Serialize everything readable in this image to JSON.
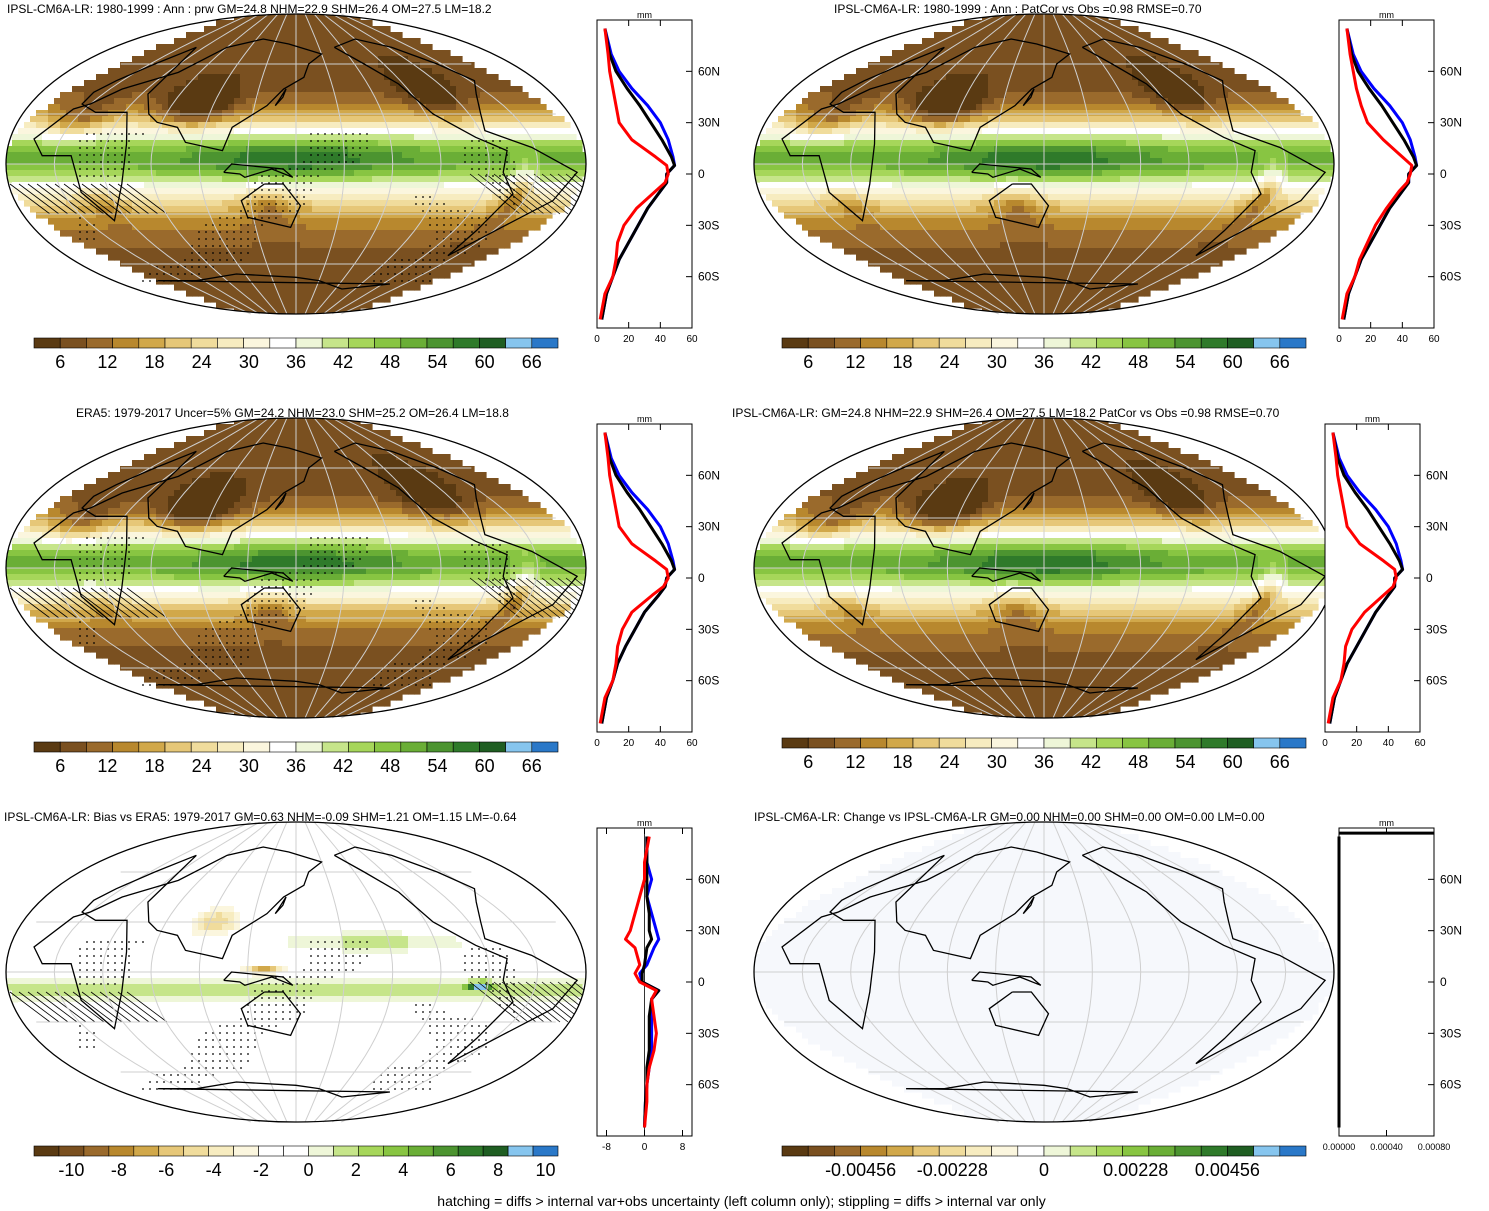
{
  "colors": {
    "precip_scale": [
      "#5a3a12",
      "#7a5020",
      "#9a6a2c",
      "#b8882e",
      "#d1a84a",
      "#e6c778",
      "#f0dc9c",
      "#f7ecc0",
      "#fbf6de",
      "#ffffff",
      "#eef6d8",
      "#c6e58a",
      "#a6d65a",
      "#88c542",
      "#6aae36",
      "#4c9430",
      "#2f7a2a",
      "#1f5e22",
      "#86c5ee",
      "#2a78c8"
    ],
    "bias_scale": [
      "#5a3a12",
      "#7a5020",
      "#9a6a2c",
      "#b8882e",
      "#d1a84a",
      "#e6c778",
      "#f0dc9c",
      "#f7ecc0",
      "#fbf6de",
      "#ffffff",
      "#ffffff",
      "#eef6d8",
      "#c6e58a",
      "#a6d65a",
      "#88c542",
      "#6aae36",
      "#4c9430",
      "#2f7a2a",
      "#1f5e22",
      "#86c5ee",
      "#2a78c8"
    ],
    "land_outline": "#000000",
    "grid": "#cfcfcf",
    "line_model": "#0000ff",
    "line_obs": "#ff0000",
    "line_mean": "#000000"
  },
  "panels": [
    {
      "id": "p1",
      "title": "IPSL-CM6A-LR: 1980-1999 : Ann : prw GM=24.8 NHM=22.9 SHM=26.4 OM=27.5 LM=18.2",
      "field": "model",
      "hatching": true,
      "stippling": true,
      "colorbar_ticks": [
        "6",
        "12",
        "18",
        "24",
        "30",
        "36",
        "42",
        "48",
        "54",
        "60",
        "66"
      ],
      "profile_unit": "mm",
      "profile_xticks": [
        "0",
        "20",
        "40",
        "60"
      ],
      "profile_yticks": [
        "60N",
        "30N",
        "0",
        "30S",
        "60S"
      ]
    },
    {
      "id": "p2",
      "title": "IPSL-CM6A-LR: 1980-1999 : Ann : PatCor vs Obs =0.98 RMSE=0.70",
      "field": "model",
      "hatching": false,
      "stippling": false,
      "colorbar_ticks": [
        "6",
        "12",
        "18",
        "24",
        "30",
        "36",
        "42",
        "48",
        "54",
        "60",
        "66"
      ],
      "profile_unit": "mm",
      "profile_xticks": [
        "0",
        "20",
        "40",
        "60"
      ],
      "profile_yticks": [
        "60N",
        "30N",
        "0",
        "30S",
        "60S"
      ]
    },
    {
      "id": "p3",
      "title": "ERA5: 1979-2017 Uncer=5% GM=24.2 NHM=23.0 SHM=25.2 OM=26.4 LM=18.8",
      "field": "obs",
      "hatching": true,
      "stippling": true,
      "colorbar_ticks": [
        "6",
        "12",
        "18",
        "24",
        "30",
        "36",
        "42",
        "48",
        "54",
        "60",
        "66"
      ],
      "profile_unit": "mm",
      "profile_xticks": [
        "0",
        "20",
        "40",
        "60"
      ],
      "profile_yticks": [
        "60N",
        "30N",
        "0",
        "30S",
        "60S"
      ]
    },
    {
      "id": "p4",
      "title": "IPSL-CM6A-LR: GM=24.8 NHM=22.9 SHM=26.4 OM=27.5 LM=18.2 PatCor vs Obs =0.98 RMSE=0.70",
      "field": "model",
      "hatching": false,
      "stippling": false,
      "colorbar_ticks": [
        "6",
        "12",
        "18",
        "24",
        "30",
        "36",
        "42",
        "48",
        "54",
        "60",
        "66"
      ],
      "profile_unit": "mm",
      "profile_xticks": [
        "0",
        "20",
        "40",
        "60"
      ],
      "profile_yticks": [
        "60N",
        "30N",
        "0",
        "30S",
        "60S"
      ]
    },
    {
      "id": "p5",
      "title": "IPSL-CM6A-LR: Bias vs ERA5: 1979-2017 GM=0.63 NHM=-0.09 SHM=1.21 OM=1.15 LM=-0.64",
      "field": "bias",
      "hatching": true,
      "stippling": true,
      "colorbar_ticks": [
        "-10",
        "-8",
        "-6",
        "-4",
        "-2",
        "0",
        "2",
        "4",
        "6",
        "8",
        "10"
      ],
      "profile_unit": "mm",
      "profile_xticks": [
        "-8",
        "0",
        "8"
      ],
      "profile_yticks": [
        "60N",
        "30N",
        "0",
        "30S",
        "60S"
      ]
    },
    {
      "id": "p6",
      "title": "IPSL-CM6A-LR: Change vs IPSL-CM6A-LR GM=0.00 NHM=0.00 SHM=0.00 OM=0.00 LM=0.00",
      "field": "zero",
      "hatching": false,
      "stippling": false,
      "colorbar_ticks": [
        "-0.00456",
        "-0.00228",
        "0",
        "0.00228",
        "0.00456"
      ],
      "profile_unit": "mm",
      "profile_xticks": [
        "0.00000",
        "0.00040",
        "0.00080"
      ],
      "profile_yticks": [
        "60N",
        "30N",
        "0",
        "30S",
        "60S"
      ]
    }
  ],
  "chart_data": [
    {
      "type": "line",
      "title": "IPSL-CM6A-LR: 1980-1999 : Ann : prw GM=24.8 NHM=22.9 SHM=26.4 OM=27.5 LM=18.2",
      "xlabel": "mm",
      "ylabel": "",
      "xlim": [
        0,
        60
      ],
      "ylim": [
        -90,
        90
      ],
      "lat": [
        85,
        70,
        60,
        50,
        40,
        30,
        20,
        10,
        5,
        0,
        -5,
        -10,
        -20,
        -30,
        -40,
        -50,
        -60,
        -70,
        -85
      ],
      "series": [
        {
          "color": "#0000ff",
          "values": [
            5,
            9,
            14,
            22,
            32,
            40,
            45,
            48,
            49,
            44,
            44,
            40,
            32,
            26,
            20,
            14,
            10,
            6,
            3
          ]
        },
        {
          "color": "#000000",
          "values": [
            5,
            8,
            12,
            19,
            27,
            34,
            41,
            47,
            49,
            44,
            44,
            40,
            32,
            26,
            20,
            14,
            10,
            6,
            3
          ]
        },
        {
          "color": "#ff0000",
          "values": [
            5,
            7,
            8,
            10,
            12,
            14,
            22,
            37,
            44,
            45,
            43,
            37,
            25,
            17,
            13,
            12,
            10,
            5,
            2
          ]
        }
      ]
    },
    {
      "type": "line",
      "title": "IPSL-CM6A-LR: 1980-1999 : Ann : PatCor vs Obs =0.98 RMSE=0.70",
      "xlabel": "mm",
      "ylabel": "",
      "xlim": [
        0,
        60
      ],
      "ylim": [
        -90,
        90
      ],
      "lat": [
        85,
        70,
        60,
        50,
        40,
        30,
        20,
        10,
        5,
        0,
        -5,
        -10,
        -20,
        -30,
        -40,
        -50,
        -60,
        -70,
        -85
      ],
      "series": [
        {
          "color": "#0000ff",
          "values": [
            5,
            9,
            14,
            22,
            32,
            40,
            45,
            48,
            49,
            44,
            44,
            40,
            32,
            26,
            20,
            14,
            10,
            6,
            3
          ]
        },
        {
          "color": "#000000",
          "values": [
            5,
            8,
            12,
            19,
            27,
            34,
            41,
            47,
            49,
            44,
            44,
            40,
            32,
            26,
            20,
            14,
            10,
            6,
            3
          ]
        },
        {
          "color": "#ff0000",
          "values": [
            5,
            7,
            9,
            11,
            14,
            18,
            28,
            40,
            46,
            45,
            43,
            38,
            30,
            23,
            18,
            13,
            10,
            5,
            2
          ]
        }
      ]
    },
    {
      "type": "line",
      "title": "ERA5: 1979-2017 Uncer=5% GM=24.2 NHM=23.0 SHM=25.2 OM=26.4 LM=18.8",
      "xlabel": "mm",
      "ylabel": "",
      "xlim": [
        0,
        60
      ],
      "ylim": [
        -90,
        90
      ],
      "lat": [
        85,
        70,
        60,
        50,
        40,
        30,
        20,
        10,
        5,
        0,
        -5,
        -10,
        -20,
        -30,
        -40,
        -50,
        -60,
        -70,
        -85
      ],
      "series": [
        {
          "color": "#0000ff",
          "values": [
            5,
            9,
            14,
            22,
            32,
            40,
            45,
            48,
            49,
            44,
            43,
            39,
            30,
            24,
            18,
            13,
            10,
            6,
            3
          ]
        },
        {
          "color": "#000000",
          "values": [
            5,
            8,
            12,
            19,
            27,
            34,
            41,
            47,
            49,
            44,
            43,
            39,
            30,
            24,
            18,
            13,
            10,
            6,
            3
          ]
        },
        {
          "color": "#ff0000",
          "values": [
            5,
            7,
            8,
            10,
            12,
            14,
            22,
            37,
            44,
            45,
            42,
            35,
            22,
            16,
            13,
            12,
            10,
            5,
            2
          ]
        }
      ]
    },
    {
      "type": "line",
      "title": "IPSL-CM6A-LR: GM=24.8 NHM=22.9 SHM=26.4 OM=27.5 LM=18.2 PatCor vs Obs =0.98 RMSE=0.70",
      "xlabel": "mm",
      "ylabel": "",
      "xlim": [
        0,
        60
      ],
      "ylim": [
        -90,
        90
      ],
      "lat": [
        85,
        70,
        60,
        50,
        40,
        30,
        20,
        10,
        5,
        0,
        -5,
        -10,
        -20,
        -30,
        -40,
        -50,
        -60,
        -70,
        -85
      ],
      "series": [
        {
          "color": "#0000ff",
          "values": [
            5,
            9,
            14,
            22,
            32,
            40,
            45,
            48,
            49,
            44,
            44,
            40,
            32,
            26,
            20,
            14,
            10,
            6,
            3
          ]
        },
        {
          "color": "#000000",
          "values": [
            5,
            8,
            12,
            19,
            27,
            34,
            41,
            47,
            49,
            44,
            44,
            40,
            32,
            26,
            20,
            14,
            10,
            6,
            3
          ]
        },
        {
          "color": "#ff0000",
          "values": [
            5,
            7,
            8,
            10,
            12,
            14,
            22,
            37,
            44,
            45,
            43,
            37,
            25,
            17,
            13,
            12,
            10,
            5,
            2
          ]
        }
      ]
    },
    {
      "type": "line",
      "title": "IPSL-CM6A-LR: Bias vs ERA5: 1979-2017 GM=0.63 NHM=-0.09 SHM=1.21 OM=1.15 LM=-0.64",
      "xlabel": "mm",
      "ylabel": "",
      "xlim": [
        -10,
        10
      ],
      "ylim": [
        -90,
        90
      ],
      "lat": [
        85,
        70,
        60,
        50,
        40,
        30,
        25,
        20,
        10,
        5,
        0,
        -5,
        -10,
        -20,
        -30,
        -40,
        -50,
        -60,
        -70,
        -85
      ],
      "series": [
        {
          "color": "#0000ff",
          "values": [
            0.5,
            0.5,
            1.5,
            0.5,
            1.5,
            2.5,
            3.0,
            2.0,
            0.5,
            -1.0,
            -0.5,
            3.0,
            1.5,
            1.5,
            1.5,
            1.5,
            1.0,
            0.5,
            0.2,
            0.0
          ]
        },
        {
          "color": "#000000",
          "values": [
            0.5,
            0.5,
            0.5,
            0.5,
            1.0,
            1.0,
            1.5,
            0.5,
            0.0,
            -0.5,
            -0.5,
            3.0,
            1.5,
            1.0,
            1.0,
            1.0,
            0.5,
            0.5,
            0.2,
            0.0
          ]
        },
        {
          "color": "#ff0000",
          "values": [
            1.0,
            0.0,
            0.0,
            -1.0,
            -2.0,
            -3.0,
            -4.0,
            -2.0,
            -1.0,
            -2.0,
            -1.0,
            2.5,
            1.5,
            2.0,
            2.5,
            2.0,
            1.0,
            0.5,
            0.5,
            0.0
          ]
        }
      ]
    },
    {
      "type": "line",
      "title": "IPSL-CM6A-LR: Change vs IPSL-CM6A-LR GM=0.00 NHM=0.00 SHM=0.00 OM=0.00 LM=0.00",
      "xlabel": "mm",
      "ylabel": "",
      "xlim": [
        0,
        0.0008
      ],
      "ylim": [
        -90,
        90
      ],
      "lat": [
        85,
        -85
      ],
      "series": [
        {
          "color": "#000000",
          "values": [
            0,
            0
          ]
        },
        {
          "color": "#000000",
          "values": [
            0.0008,
            0.0008
          ],
          "note_lat": [
            87,
            87
          ]
        }
      ]
    }
  ],
  "footer": "hatching = diffs > internal var+obs uncertainty (left column only); stippling = diffs > internal var only"
}
